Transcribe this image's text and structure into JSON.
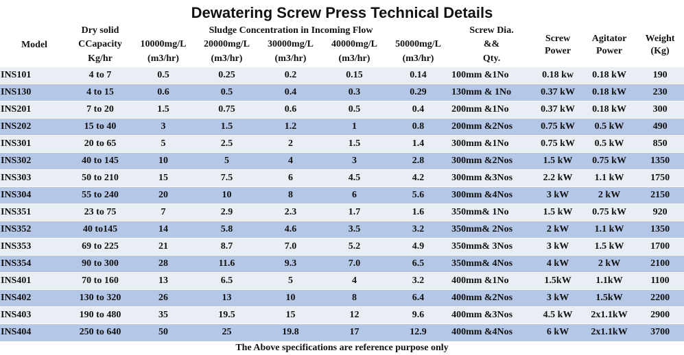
{
  "title": "Dewatering Screw Press Technical Details",
  "headers": {
    "model": "Model",
    "dry_solid": [
      "Dry solid",
      "CCapacity",
      "Kg/hr"
    ],
    "sludge_group": "Sludge Concentration in Incoming Flow",
    "concentrations": [
      "10000mg/L",
      "20000mg/L",
      "30000mg/L",
      "40000mg/L",
      "50000mg/L"
    ],
    "flow_unit": "(m3/hr)",
    "screw_dia": [
      "Screw Dia.",
      "&&",
      "Qty."
    ],
    "screw_power": [
      "Screw",
      "Power"
    ],
    "agitator_power": [
      "Agitator",
      "Power"
    ],
    "weight": [
      "Weight",
      "(Kg)"
    ]
  },
  "rows": [
    {
      "model": "INS101",
      "capacity": "4 to 7",
      "c10": "0.5",
      "c20": "0.25",
      "c30": "0.2",
      "c40": "0.15",
      "c50": "0.14",
      "dia": "100mm &1No",
      "screw": "0.18 kw",
      "agitator": "0.18 kW",
      "weight": "190"
    },
    {
      "model": "INS130",
      "capacity": "4  to 15",
      "c10": "0.6",
      "c20": "0.5",
      "c30": "0.4",
      "c40": "0.3",
      "c50": "0.29",
      "dia": "130mm & 1No",
      "screw": "0.37 kW",
      "agitator": "0.18 kW",
      "weight": "230"
    },
    {
      "model": "INS201",
      "capacity": "7 to 20",
      "c10": "1.5",
      "c20": "0.75",
      "c30": "0.6",
      "c40": "0.5",
      "c50": "0.4",
      "dia": "200mm &1No",
      "screw": "0.37 kW",
      "agitator": "0.18 kW",
      "weight": "300"
    },
    {
      "model": "INS202",
      "capacity": "15 to 40",
      "c10": "3",
      "c20": "1.5",
      "c30": "1.2",
      "c40": "1",
      "c50": "0.8",
      "dia": "200mm &2Nos",
      "screw": "0.75 kW",
      "agitator": "0.5 kW",
      "weight": "490"
    },
    {
      "model": "INS301",
      "capacity": "20 to 65",
      "c10": "5",
      "c20": "2.5",
      "c30": "2",
      "c40": "1.5",
      "c50": "1.4",
      "dia": "300mm &1No",
      "screw": "0.75 kW",
      "agitator": "0.5 kW",
      "weight": "850"
    },
    {
      "model": "INS302",
      "capacity": "40 to 145",
      "c10": "10",
      "c20": "5",
      "c30": "4",
      "c40": "3",
      "c50": "2.8",
      "dia": "300mm &2Nos",
      "screw": "1.5 kW",
      "agitator": "0.75 kW",
      "weight": "1350"
    },
    {
      "model": "INS303",
      "capacity": "50 to 210",
      "c10": "15",
      "c20": "7.5",
      "c30": "6",
      "c40": "4.5",
      "c50": "4.2",
      "dia": "300mm &3Nos",
      "screw": "2.2 kW",
      "agitator": "1.1 kW",
      "weight": "1750"
    },
    {
      "model": "INS304",
      "capacity": "55 to 240",
      "c10": "20",
      "c20": "10",
      "c30": "8",
      "c40": "6",
      "c50": "5.6",
      "dia": "300mm &4Nos",
      "screw": "3 kW",
      "agitator": "2 kW",
      "weight": "2150"
    },
    {
      "model": "INS351",
      "capacity": "23 to 75",
      "c10": "7",
      "c20": "2.9",
      "c30": "2.3",
      "c40": "1.7",
      "c50": "1.6",
      "dia": "350mm& 1No",
      "screw": "1.5 kW",
      "agitator": "0.75 kW",
      "weight": "920"
    },
    {
      "model": "INS352",
      "capacity": "40 to145",
      "c10": "14",
      "c20": "5.8",
      "c30": "4.6",
      "c40": "3.5",
      "c50": "3.2",
      "dia": "350mm& 2Nos",
      "screw": "2 kW",
      "agitator": "1.1 kW",
      "weight": "1350"
    },
    {
      "model": "INS353",
      "capacity": "69 to 225",
      "c10": "21",
      "c20": "8.7",
      "c30": "7.0",
      "c40": "5.2",
      "c50": "4.9",
      "dia": "350mm& 3Nos",
      "screw": "3 kW",
      "agitator": "1.5 kW",
      "weight": "1700"
    },
    {
      "model": "INS354",
      "capacity": "90 to 300",
      "c10": "28",
      "c20": "11.6",
      "c30": "9.3",
      "c40": "7.0",
      "c50": "6.5",
      "dia": "350mm& 4Nos",
      "screw": "4 kW",
      "agitator": "2 kW",
      "weight": "2100"
    },
    {
      "model": "INS401",
      "capacity": "70 to 160",
      "c10": "13",
      "c20": "6.5",
      "c30": "5",
      "c40": "4",
      "c50": "3.2",
      "dia": "400mm &1No",
      "screw": "1.5kW",
      "agitator": "1.1kW",
      "weight": "1100"
    },
    {
      "model": "INS402",
      "capacity": "130 to 320",
      "c10": "26",
      "c20": "13",
      "c30": "10",
      "c40": "8",
      "c50": "6.4",
      "dia": "400mm &2Nos",
      "screw": "3 kW",
      "agitator": "1.5kW",
      "weight": "2200"
    },
    {
      "model": "INS403",
      "capacity": "190 to 480",
      "c10": "35",
      "c20": "19.5",
      "c30": "15",
      "c40": "12",
      "c50": "9.6",
      "dia": "400mm &3Nos",
      "screw": "4.5 kW",
      "agitator": "2x1.1kW",
      "weight": "2900"
    },
    {
      "model": "INS404",
      "capacity": "250 to 640",
      "c10": "50",
      "c20": "25",
      "c30": "19.8",
      "c40": "17",
      "c50": "12.9",
      "dia": "400mm &4Nos",
      "screw": "6 kW",
      "agitator": "2x1.1kW",
      "weight": "3700"
    }
  ],
  "footer": "The Above specifications are reference purpose only",
  "colors": {
    "row_light": "#e9edf4",
    "row_dark": "#b4c7e7"
  }
}
